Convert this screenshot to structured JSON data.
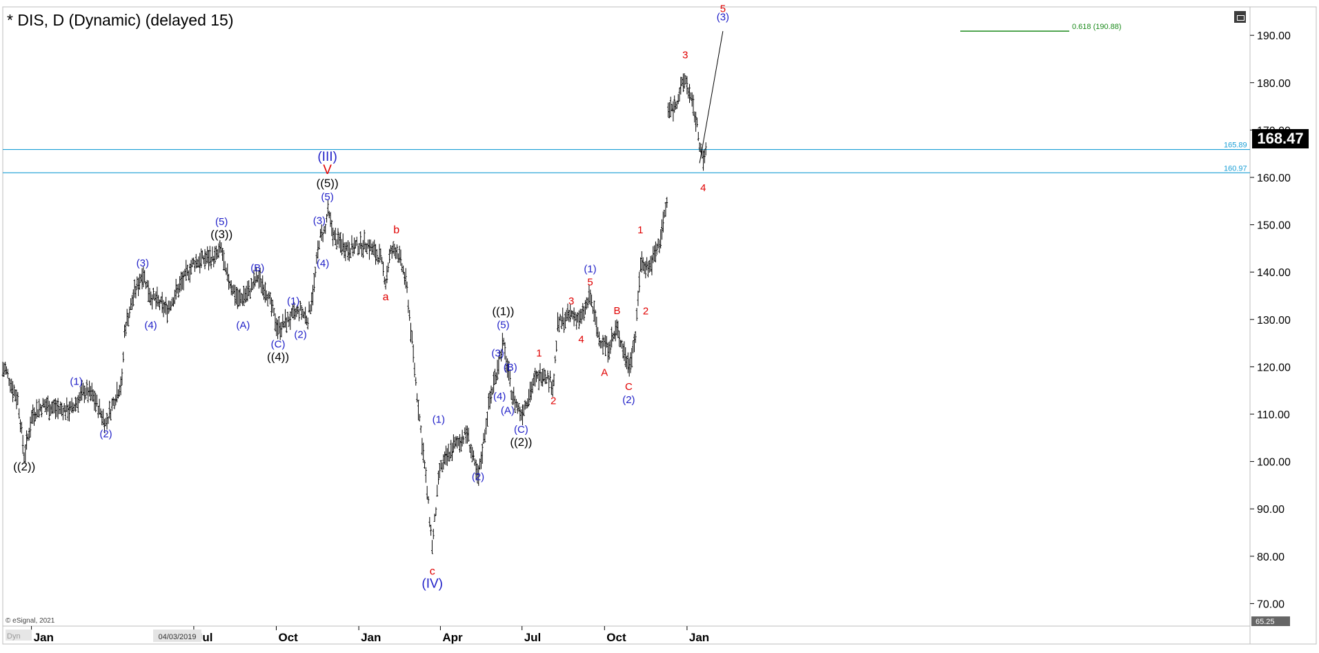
{
  "header": {
    "title": "* DIS, D (Dynamic) (delayed 15)"
  },
  "footer": {
    "copyright": "© eSignal, 2021",
    "dyn_label": "Dyn",
    "date_badge": "04/03/2019"
  },
  "price_panel": {
    "last_price": "168.47",
    "bottom_value": "65.25"
  },
  "chart_data": {
    "type": "ohlc",
    "symbol": "DIS",
    "interval": "D",
    "y_axis": {
      "range": [
        65.25,
        196
      ],
      "ticks": [
        "70.00",
        "80.00",
        "90.00",
        "100.00",
        "110.00",
        "120.00",
        "130.00",
        "140.00",
        "150.00",
        "160.00",
        "170.00",
        "180.00",
        "190.00"
      ]
    },
    "x_axis": {
      "ticks": [
        "Jan",
        "Jul",
        "Oct",
        "Jan",
        "Apr",
        "Jul",
        "Oct",
        "Jan"
      ]
    },
    "horizontal_levels": [
      {
        "label": "165.89",
        "value": 165.89,
        "color": "#1a9fd6"
      },
      {
        "label": "160.97",
        "value": 160.97,
        "color": "#1a9fd6"
      }
    ],
    "fib_target": {
      "label": "0.618 (190.88)",
      "value": 190.88,
      "color": "#1a8a1a"
    },
    "projection": {
      "from": {
        "x": "2021-01-15",
        "y": 163
      },
      "to": {
        "x": "2021-02-10",
        "y": 190.88
      }
    },
    "price_path": [
      {
        "x": "2018-12-03",
        "y": 119.5
      },
      {
        "x": "2018-12-10",
        "y": 116
      },
      {
        "x": "2018-12-17",
        "y": 113
      },
      {
        "x": "2018-12-24",
        "y": 101
      },
      {
        "x": "2019-01-02",
        "y": 110
      },
      {
        "x": "2019-01-15",
        "y": 112
      },
      {
        "x": "2019-02-01",
        "y": 111
      },
      {
        "x": "2019-02-15",
        "y": 111
      },
      {
        "x": "2019-03-01",
        "y": 115
      },
      {
        "x": "2019-03-10",
        "y": 114
      },
      {
        "x": "2019-03-25",
        "y": 108
      },
      {
        "x": "2019-04-05",
        "y": 114
      },
      {
        "x": "2019-04-12",
        "y": 117
      },
      {
        "x": "2019-04-15",
        "y": 128
      },
      {
        "x": "2019-04-25",
        "y": 135
      },
      {
        "x": "2019-05-05",
        "y": 140
      },
      {
        "x": "2019-05-14",
        "y": 135
      },
      {
        "x": "2019-06-01",
        "y": 132
      },
      {
        "x": "2019-06-15",
        "y": 137
      },
      {
        "x": "2019-07-01",
        "y": 142
      },
      {
        "x": "2019-07-15",
        "y": 143
      },
      {
        "x": "2019-07-25",
        "y": 143
      },
      {
        "x": "2019-08-01",
        "y": 145
      },
      {
        "x": "2019-08-05",
        "y": 140
      },
      {
        "x": "2019-08-20",
        "y": 134
      },
      {
        "x": "2019-09-01",
        "y": 136
      },
      {
        "x": "2019-09-10",
        "y": 139
      },
      {
        "x": "2019-09-20",
        "y": 136
      },
      {
        "x": "2019-10-03",
        "y": 128
      },
      {
        "x": "2019-10-15",
        "y": 130
      },
      {
        "x": "2019-10-28",
        "y": 132
      },
      {
        "x": "2019-11-05",
        "y": 130
      },
      {
        "x": "2019-11-12",
        "y": 137
      },
      {
        "x": "2019-11-18",
        "y": 147
      },
      {
        "x": "2019-11-25",
        "y": 149
      },
      {
        "x": "2019-11-27",
        "y": 153
      },
      {
        "x": "2019-12-05",
        "y": 147
      },
      {
        "x": "2019-12-20",
        "y": 145
      },
      {
        "x": "2020-01-10",
        "y": 146
      },
      {
        "x": "2020-01-25",
        "y": 143
      },
      {
        "x": "2020-01-31",
        "y": 138
      },
      {
        "x": "2020-02-05",
        "y": 144
      },
      {
        "x": "2020-02-12",
        "y": 145
      },
      {
        "x": "2020-02-20",
        "y": 140
      },
      {
        "x": "2020-02-24",
        "y": 136
      },
      {
        "x": "2020-03-05",
        "y": 116
      },
      {
        "x": "2020-03-15",
        "y": 98
      },
      {
        "x": "2020-03-23",
        "y": 82
      },
      {
        "x": "2020-03-31",
        "y": 98
      },
      {
        "x": "2020-04-15",
        "y": 103
      },
      {
        "x": "2020-05-01",
        "y": 106
      },
      {
        "x": "2020-05-13",
        "y": 96
      },
      {
        "x": "2020-05-25",
        "y": 112
      },
      {
        "x": "2020-06-05",
        "y": 121
      },
      {
        "x": "2020-06-10",
        "y": 125
      },
      {
        "x": "2020-06-20",
        "y": 114
      },
      {
        "x": "2020-06-30",
        "y": 110
      },
      {
        "x": "2020-07-15",
        "y": 117
      },
      {
        "x": "2020-07-25",
        "y": 119
      },
      {
        "x": "2020-08-05",
        "y": 116
      },
      {
        "x": "2020-08-10",
        "y": 129
      },
      {
        "x": "2020-08-25",
        "y": 131
      },
      {
        "x": "2020-09-05",
        "y": 130
      },
      {
        "x": "2020-09-15",
        "y": 135
      },
      {
        "x": "2020-09-25",
        "y": 126
      },
      {
        "x": "2020-10-05",
        "y": 124
      },
      {
        "x": "2020-10-15",
        "y": 128
      },
      {
        "x": "2020-10-28",
        "y": 120
      },
      {
        "x": "2020-11-05",
        "y": 127
      },
      {
        "x": "2020-11-10",
        "y": 142
      },
      {
        "x": "2020-11-20",
        "y": 141
      },
      {
        "x": "2020-12-01",
        "y": 146
      },
      {
        "x": "2020-12-10",
        "y": 155
      },
      {
        "x": "2020-12-11",
        "y": 174
      },
      {
        "x": "2020-12-18",
        "y": 175
      },
      {
        "x": "2020-12-30",
        "y": 181
      },
      {
        "x": "2021-01-10",
        "y": 173
      },
      {
        "x": "2021-01-19",
        "y": 163
      },
      {
        "x": "2021-01-22",
        "y": 166
      }
    ],
    "annotations": [
      {
        "text": "((2))",
        "x": "2018-12-24",
        "y": 101,
        "pos": "below",
        "color": "#000000"
      },
      {
        "text": "(1)",
        "x": "2019-02-20",
        "y": 115,
        "pos": "above",
        "color": "#2020c8"
      },
      {
        "text": "(2)",
        "x": "2019-03-25",
        "y": 108,
        "pos": "below",
        "color": "#2020c8"
      },
      {
        "text": "(3)",
        "x": "2019-05-05",
        "y": 140,
        "pos": "above",
        "color": "#2020c8"
      },
      {
        "text": "(4)",
        "x": "2019-05-14",
        "y": 131,
        "pos": "below",
        "color": "#2020c8"
      },
      {
        "text": "((3))",
        "x": "2019-08-01",
        "y": 146,
        "pos": "above",
        "color": "#000000"
      },
      {
        "text": "(5)",
        "x": "2019-08-01",
        "y": 146,
        "pos": "above",
        "color": "#2020c8"
      },
      {
        "text": "(A)",
        "x": "2019-08-25",
        "y": 131,
        "pos": "below",
        "color": "#2020c8"
      },
      {
        "text": "(B)",
        "x": "2019-09-10",
        "y": 139,
        "pos": "above",
        "color": "#2020c8"
      },
      {
        "text": "(C)",
        "x": "2019-10-03",
        "y": 127,
        "pos": "below",
        "color": "#2020c8"
      },
      {
        "text": "((4))",
        "x": "2019-10-03",
        "y": 127,
        "pos": "below",
        "color": "#000000"
      },
      {
        "text": "(1)",
        "x": "2019-10-20",
        "y": 132,
        "pos": "above",
        "color": "#2020c8"
      },
      {
        "text": "(2)",
        "x": "2019-10-28",
        "y": 129,
        "pos": "below",
        "color": "#2020c8"
      },
      {
        "text": "(3)",
        "x": "2019-11-18",
        "y": 149,
        "pos": "above",
        "color": "#2020c8"
      },
      {
        "text": "(4)",
        "x": "2019-11-22",
        "y": 144,
        "pos": "below",
        "color": "#2020c8"
      },
      {
        "text": "(5)",
        "x": "2019-11-27",
        "y": 154,
        "pos": "above",
        "color": "#2020c8"
      },
      {
        "text": "((5))",
        "x": "2019-11-27",
        "y": 154,
        "pos": "above",
        "color": "#000000"
      },
      {
        "text": "V",
        "x": "2019-11-27",
        "y": 154,
        "pos": "above",
        "color": "#e00000"
      },
      {
        "text": "(III)",
        "x": "2019-11-27",
        "y": 154,
        "pos": "above",
        "color": "#2020c8"
      },
      {
        "text": "a",
        "x": "2020-01-31",
        "y": 137,
        "pos": "below",
        "color": "#e00000"
      },
      {
        "text": "b",
        "x": "2020-02-12",
        "y": 147,
        "pos": "above",
        "color": "#e00000"
      },
      {
        "text": "c",
        "x": "2020-03-23",
        "y": 79,
        "pos": "below",
        "color": "#e00000"
      },
      {
        "text": "(IV)",
        "x": "2020-03-23",
        "y": 79,
        "pos": "below",
        "color": "#2020c8"
      },
      {
        "text": "(1)",
        "x": "2020-03-30",
        "y": 107,
        "pos": "above",
        "color": "#2020c8"
      },
      {
        "text": "(2)",
        "x": "2020-05-13",
        "y": 99,
        "pos": "below",
        "color": "#2020c8"
      },
      {
        "text": "(3)",
        "x": "2020-06-04",
        "y": 121,
        "pos": "above",
        "color": "#2020c8"
      },
      {
        "text": "(4)",
        "x": "2020-06-06",
        "y": 116,
        "pos": "below",
        "color": "#2020c8"
      },
      {
        "text": "(5)",
        "x": "2020-06-10",
        "y": 127,
        "pos": "above",
        "color": "#2020c8"
      },
      {
        "text": "((1))",
        "x": "2020-06-10",
        "y": 127,
        "pos": "above",
        "color": "#000000"
      },
      {
        "text": "(B)",
        "x": "2020-06-18",
        "y": 118,
        "pos": "above",
        "color": "#2020c8"
      },
      {
        "text": "(A)",
        "x": "2020-06-15",
        "y": 113,
        "pos": "below",
        "color": "#2020c8"
      },
      {
        "text": "(C)",
        "x": "2020-06-30",
        "y": 109,
        "pos": "below",
        "color": "#2020c8"
      },
      {
        "text": "((2))",
        "x": "2020-06-30",
        "y": 109,
        "pos": "below",
        "color": "#000000"
      },
      {
        "text": "1",
        "x": "2020-07-20",
        "y": 121,
        "pos": "above",
        "color": "#e00000"
      },
      {
        "text": "2",
        "x": "2020-08-05",
        "y": 115,
        "pos": "below",
        "color": "#e00000"
      },
      {
        "text": "3",
        "x": "2020-08-25",
        "y": 132,
        "pos": "above",
        "color": "#e00000"
      },
      {
        "text": "4",
        "x": "2020-09-05",
        "y": 128,
        "pos": "below",
        "color": "#e00000"
      },
      {
        "text": "5",
        "x": "2020-09-15",
        "y": 136,
        "pos": "above",
        "color": "#e00000"
      },
      {
        "text": "(1)",
        "x": "2020-09-15",
        "y": 136,
        "pos": "above",
        "color": "#2020c8"
      },
      {
        "text": "A",
        "x": "2020-10-01",
        "y": 121,
        "pos": "below",
        "color": "#e00000"
      },
      {
        "text": "B",
        "x": "2020-10-15",
        "y": 130,
        "pos": "above",
        "color": "#e00000"
      },
      {
        "text": "C",
        "x": "2020-10-28",
        "y": 118,
        "pos": "below",
        "color": "#e00000"
      },
      {
        "text": "(2)",
        "x": "2020-10-28",
        "y": 118,
        "pos": "below",
        "color": "#2020c8"
      },
      {
        "text": "1",
        "x": "2020-11-10",
        "y": 147,
        "pos": "above",
        "color": "#e00000"
      },
      {
        "text": "2",
        "x": "2020-11-16",
        "y": 134,
        "pos": "below",
        "color": "#e00000"
      },
      {
        "text": "3",
        "x": "2020-12-30",
        "y": 184,
        "pos": "above",
        "color": "#e00000"
      },
      {
        "text": "4",
        "x": "2021-01-19",
        "y": 160,
        "pos": "below",
        "color": "#e00000"
      },
      {
        "text": "(3)",
        "x": "2021-02-10",
        "y": 192,
        "pos": "above",
        "color": "#2020c8"
      },
      {
        "text": "5",
        "x": "2021-02-10",
        "y": 191,
        "pos": "above",
        "color": "#e00000"
      }
    ]
  }
}
